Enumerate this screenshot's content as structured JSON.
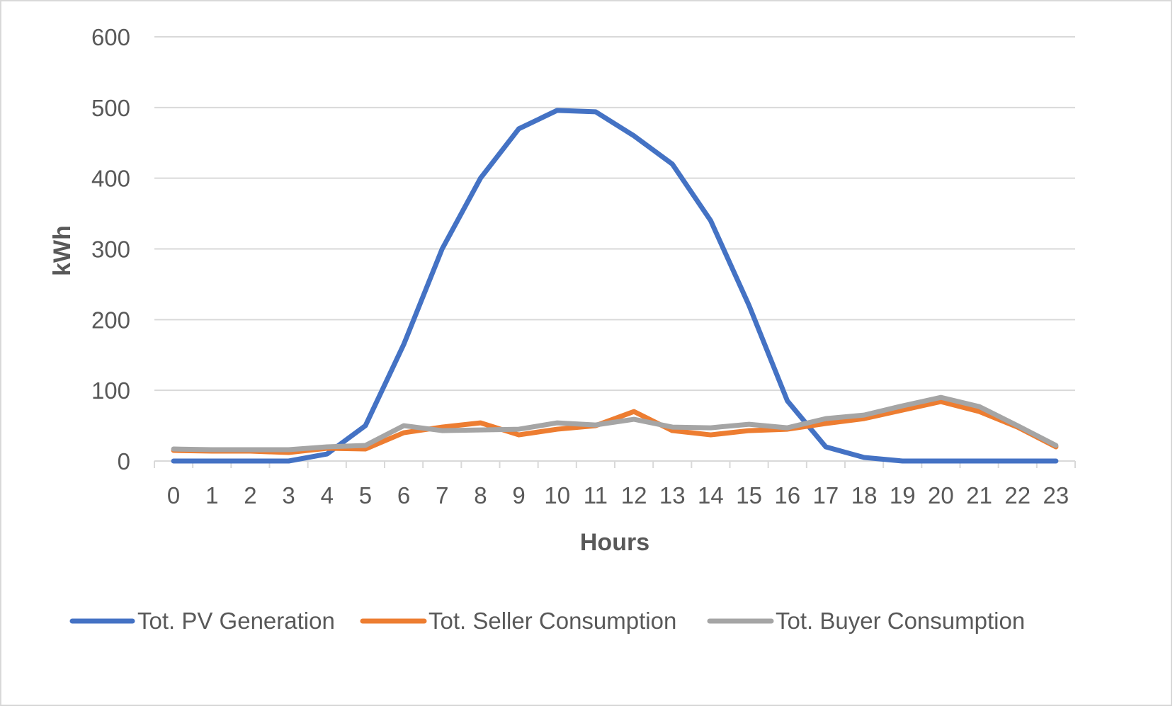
{
  "chart_data": {
    "type": "line",
    "title": "",
    "xlabel": "Hours",
    "ylabel": "kWh",
    "ylim": [
      0,
      600
    ],
    "yticks": [
      0,
      100,
      200,
      300,
      400,
      500,
      600
    ],
    "grid": true,
    "legend_position": "bottom",
    "categories": [
      "0",
      "1",
      "2",
      "3",
      "4",
      "5",
      "6",
      "7",
      "8",
      "9",
      "10",
      "11",
      "12",
      "13",
      "14",
      "15",
      "16",
      "17",
      "18",
      "19",
      "20",
      "21",
      "22",
      "23"
    ],
    "series": [
      {
        "name": "Tot. PV Generation",
        "color": "#4472C4",
        "values": [
          0,
          0,
          0,
          0,
          10,
          50,
          165,
          300,
          400,
          470,
          496,
          494,
          460,
          420,
          340,
          220,
          85,
          20,
          5,
          0,
          0,
          0,
          0,
          0
        ]
      },
      {
        "name": "Tot. Seller Consumption",
        "color": "#ED7D31",
        "values": [
          15,
          14,
          14,
          12,
          18,
          17,
          40,
          48,
          54,
          37,
          45,
          50,
          70,
          43,
          37,
          43,
          45,
          53,
          60,
          72,
          84,
          70,
          48,
          20
        ]
      },
      {
        "name": "Tot. Buyer Consumption",
        "color": "#A5A5A5",
        "values": [
          17,
          16,
          16,
          16,
          20,
          22,
          50,
          43,
          44,
          45,
          54,
          51,
          59,
          48,
          47,
          52,
          47,
          60,
          65,
          78,
          90,
          77,
          50,
          22
        ]
      }
    ]
  }
}
